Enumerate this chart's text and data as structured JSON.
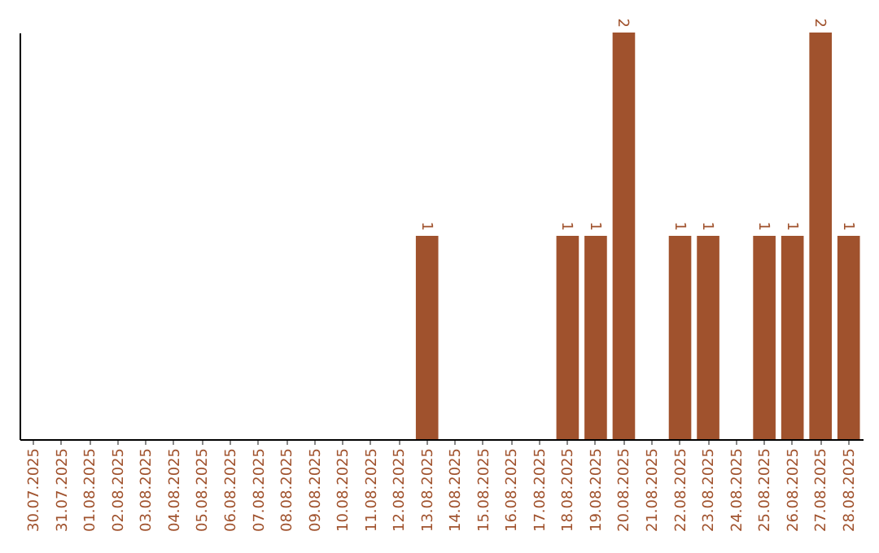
{
  "chart_data": {
    "type": "bar",
    "categories": [
      "30.07.2025",
      "31.07.2025",
      "01.08.2025",
      "02.08.2025",
      "03.08.2025",
      "04.08.2025",
      "05.08.2025",
      "06.08.2025",
      "07.08.2025",
      "08.08.2025",
      "09.08.2025",
      "10.08.2025",
      "11.08.2025",
      "12.08.2025",
      "13.08.2025",
      "14.08.2025",
      "15.08.2025",
      "16.08.2025",
      "17.08.2025",
      "18.08.2025",
      "19.08.2025",
      "20.08.2025",
      "21.08.2025",
      "22.08.2025",
      "23.08.2025",
      "24.08.2025",
      "25.08.2025",
      "26.08.2025",
      "27.08.2025",
      "28.08.2025"
    ],
    "values": [
      null,
      null,
      null,
      null,
      null,
      null,
      null,
      null,
      null,
      null,
      null,
      null,
      null,
      null,
      1,
      null,
      null,
      null,
      null,
      1,
      1,
      2,
      null,
      1,
      1,
      null,
      1,
      1,
      2,
      1
    ],
    "data_labels": true,
    "color": "#a0522d",
    "tick_labels": "x"
  }
}
